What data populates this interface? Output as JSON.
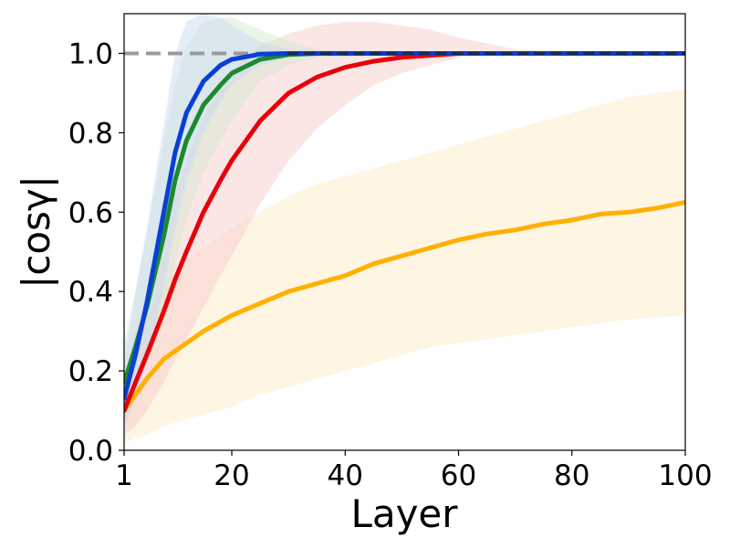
{
  "chart_data": {
    "type": "line",
    "xlabel": "Layer",
    "ylabel": "|cosγ|",
    "xlim": [
      1,
      100
    ],
    "ylim": [
      0,
      1.1
    ],
    "xticks": [
      1,
      20,
      40,
      60,
      80,
      100
    ],
    "xtick_labels": [
      "1",
      "20",
      "40",
      "60",
      "80",
      "100"
    ],
    "yticks": [
      0,
      0.2,
      0.4,
      0.6,
      0.8,
      1.0
    ],
    "ytick_labels": [
      "0.0",
      "0.2",
      "0.4",
      "0.6",
      "0.8",
      "1.0"
    ],
    "grid": false,
    "legend": "none",
    "reference_line": {
      "y": 1.0,
      "style": "dashed",
      "color": "#9a9a9a"
    },
    "series": [
      {
        "color": "#ffb000",
        "band_color": "#fde9c0",
        "x": [
          1,
          3,
          5,
          8,
          10,
          15,
          20,
          25,
          30,
          35,
          40,
          45,
          50,
          55,
          60,
          65,
          70,
          75,
          80,
          85,
          90,
          95,
          100
        ],
        "y": [
          0.1,
          0.14,
          0.18,
          0.23,
          0.25,
          0.3,
          0.34,
          0.37,
          0.4,
          0.42,
          0.44,
          0.47,
          0.49,
          0.51,
          0.53,
          0.545,
          0.555,
          0.57,
          0.58,
          0.595,
          0.6,
          0.61,
          0.625
        ],
        "lower": [
          0.02,
          0.03,
          0.04,
          0.06,
          0.07,
          0.09,
          0.11,
          0.14,
          0.16,
          0.18,
          0.2,
          0.22,
          0.24,
          0.26,
          0.27,
          0.28,
          0.29,
          0.3,
          0.31,
          0.32,
          0.33,
          0.335,
          0.34
        ],
        "upper": [
          0.18,
          0.28,
          0.34,
          0.42,
          0.45,
          0.51,
          0.56,
          0.6,
          0.64,
          0.67,
          0.69,
          0.71,
          0.73,
          0.75,
          0.77,
          0.79,
          0.81,
          0.83,
          0.85,
          0.87,
          0.89,
          0.9,
          0.91
        ]
      },
      {
        "color": "#e8000b",
        "band_color": "#f6c7c7",
        "x": [
          1,
          3,
          5,
          8,
          10,
          12,
          15,
          18,
          20,
          25,
          30,
          35,
          40,
          45,
          50,
          55,
          60,
          70,
          100
        ],
        "y": [
          0.1,
          0.17,
          0.24,
          0.35,
          0.43,
          0.5,
          0.6,
          0.68,
          0.73,
          0.83,
          0.9,
          0.94,
          0.965,
          0.98,
          0.99,
          0.995,
          1.0,
          1.0,
          1.0
        ],
        "lower": [
          0.04,
          0.06,
          0.1,
          0.17,
          0.23,
          0.28,
          0.36,
          0.44,
          0.49,
          0.62,
          0.73,
          0.81,
          0.87,
          0.92,
          0.95,
          0.97,
          0.99,
          1.0,
          1.0
        ],
        "upper": [
          0.18,
          0.3,
          0.4,
          0.55,
          0.65,
          0.73,
          0.84,
          0.92,
          0.96,
          1.02,
          1.05,
          1.07,
          1.08,
          1.08,
          1.07,
          1.06,
          1.04,
          1.01,
          1.0
        ]
      },
      {
        "color": "#1a8a2e",
        "band_color": "#cfe8cf",
        "x": [
          1,
          3,
          5,
          8,
          10,
          12,
          15,
          18,
          20,
          25,
          30,
          35,
          40,
          100
        ],
        "y": [
          0.17,
          0.26,
          0.36,
          0.54,
          0.68,
          0.78,
          0.87,
          0.92,
          0.95,
          0.985,
          0.997,
          1.0,
          1.0,
          1.0
        ],
        "lower": [
          0.08,
          0.14,
          0.22,
          0.35,
          0.47,
          0.58,
          0.7,
          0.78,
          0.83,
          0.93,
          0.97,
          0.99,
          1.0,
          1.0
        ],
        "upper": [
          0.27,
          0.4,
          0.54,
          0.78,
          0.92,
          1.02,
          1.08,
          1.09,
          1.09,
          1.06,
          1.03,
          1.01,
          1.0,
          1.0
        ]
      },
      {
        "color": "#0a3fd6",
        "band_color": "#c7d6f2",
        "x": [
          1,
          3,
          5,
          8,
          10,
          12,
          15,
          18,
          20,
          25,
          30,
          100
        ],
        "y": [
          0.13,
          0.24,
          0.37,
          0.6,
          0.75,
          0.85,
          0.93,
          0.97,
          0.985,
          0.998,
          1.0,
          1.0
        ],
        "lower": [
          0.06,
          0.12,
          0.22,
          0.41,
          0.56,
          0.68,
          0.8,
          0.88,
          0.92,
          0.97,
          0.99,
          1.0
        ],
        "upper": [
          0.22,
          0.4,
          0.56,
          0.82,
          1.0,
          1.08,
          1.1,
          1.09,
          1.07,
          1.03,
          1.01,
          1.0
        ]
      },
      {
        "color": "#1a2a4a",
        "band_color": "#c7d6f2",
        "x": [
          30,
          100
        ],
        "y": [
          1.0,
          1.0
        ],
        "lower": [
          1.0,
          1.0
        ],
        "upper": [
          1.0,
          1.0
        ]
      }
    ]
  }
}
